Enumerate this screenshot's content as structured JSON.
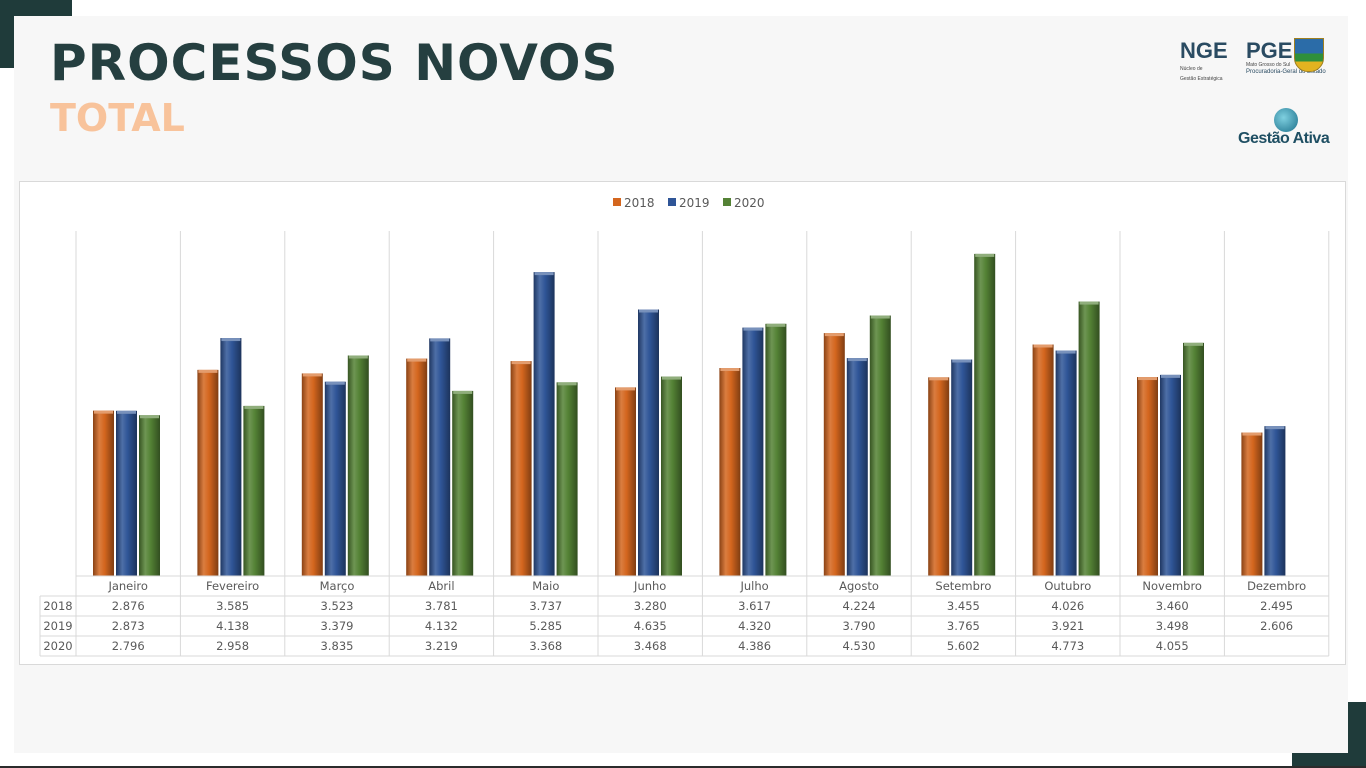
{
  "slide": {
    "title": "PROCESSOS NOVOS",
    "subtitle": "TOTAL"
  },
  "logos": {
    "nge": {
      "acronym": "NGE",
      "line1": "Núcleo de",
      "line2": "Gestão Estratégica"
    },
    "pge": {
      "acronym": "PGE",
      "line1": "Mato Grosso do Sul",
      "line2": "Procuradoria-Geral do Estado"
    },
    "gestao": {
      "text": "Gestão Ativa"
    }
  },
  "colors": {
    "title": "#253f40",
    "subtitle": "#f8c39b",
    "series_2018": "#d4661e",
    "series_2019": "#2f5597",
    "series_2020": "#548235",
    "frame": "#1f3b3a"
  },
  "chart_data": {
    "type": "bar",
    "title": "",
    "xlabel": "",
    "ylabel": "",
    "ylim": [
      0,
      6000
    ],
    "grid": false,
    "legend": "top-center",
    "categories": [
      "Janeiro",
      "Fevereiro",
      "Março",
      "Abril",
      "Maio",
      "Junho",
      "Julho",
      "Agosto",
      "Setembro",
      "Outubro",
      "Novembro",
      "Dezembro"
    ],
    "series": [
      {
        "name": "2018",
        "values": [
          2876,
          3585,
          3523,
          3781,
          3737,
          3280,
          3617,
          4224,
          3455,
          4026,
          3460,
          2495
        ],
        "labels": [
          "2.876",
          "3.585",
          "3.523",
          "3.781",
          "3.737",
          "3.280",
          "3.617",
          "4.224",
          "3.455",
          "4.026",
          "3.460",
          "2.495"
        ]
      },
      {
        "name": "2019",
        "values": [
          2873,
          4138,
          3379,
          4132,
          5285,
          4635,
          4320,
          3790,
          3765,
          3921,
          3498,
          2606
        ],
        "labels": [
          "2.873",
          "4.138",
          "3.379",
          "4.132",
          "5.285",
          "4.635",
          "4.320",
          "3.790",
          "3.765",
          "3.921",
          "3.498",
          "2.606"
        ]
      },
      {
        "name": "2020",
        "values": [
          2796,
          2958,
          3835,
          3219,
          3368,
          3468,
          4386,
          4530,
          5602,
          4773,
          4055,
          null
        ],
        "labels": [
          "2.796",
          "2.958",
          "3.835",
          "3.219",
          "3.368",
          "3.468",
          "4.386",
          "4.530",
          "5.602",
          "4.773",
          "4.055",
          ""
        ]
      }
    ]
  }
}
